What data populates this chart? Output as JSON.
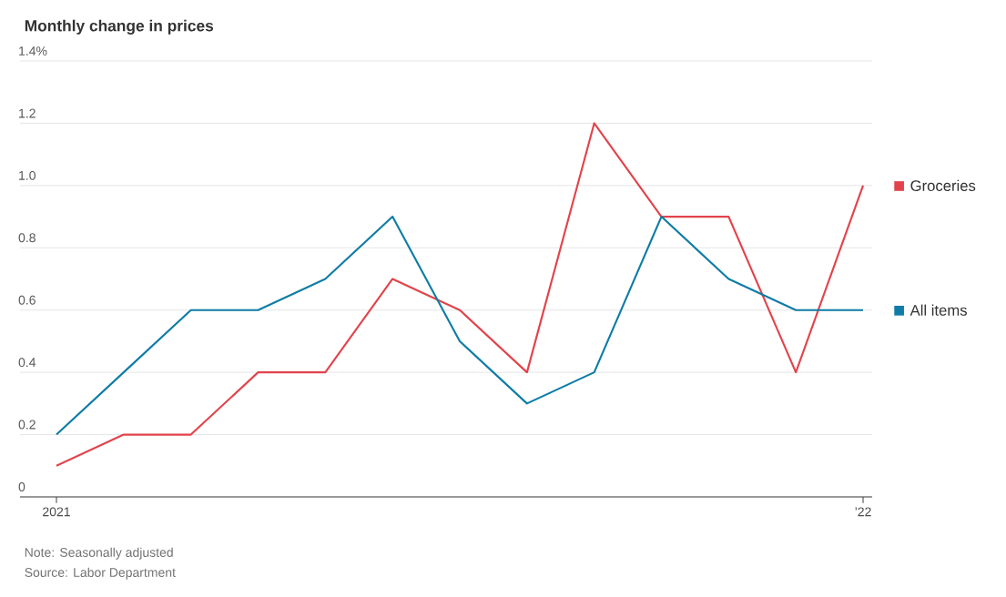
{
  "chart_data": {
    "type": "line",
    "title": "Monthly change in prices",
    "categories": [
      "2021",
      null,
      null,
      null,
      null,
      null,
      null,
      null,
      null,
      null,
      null,
      null,
      "’22"
    ],
    "series": [
      {
        "name": "Groceries",
        "color": "#e2434b",
        "values": [
          0.1,
          0.2,
          0.2,
          0.4,
          0.4,
          0.7,
          0.6,
          0.4,
          1.2,
          0.9,
          0.9,
          0.4,
          1.0
        ]
      },
      {
        "name": "All items",
        "color": "#0e7ca6",
        "values": [
          0.2,
          0.4,
          0.6,
          0.6,
          0.7,
          0.9,
          0.5,
          0.3,
          0.4,
          0.9,
          0.7,
          0.6,
          0.6
        ]
      }
    ],
    "ylim": [
      0,
      1.4
    ],
    "yticks": [
      {
        "value": 0,
        "label": "0"
      },
      {
        "value": 0.2,
        "label": "0.2"
      },
      {
        "value": 0.4,
        "label": "0.4"
      },
      {
        "value": 0.6,
        "label": "0.6"
      },
      {
        "value": 0.8,
        "label": "0.8"
      },
      {
        "value": 1.0,
        "label": "1.0"
      },
      {
        "value": 1.2,
        "label": "1.2"
      },
      {
        "value": 1.4,
        "label": "1.4%"
      }
    ],
    "grid": "y",
    "legend": "right",
    "line_style": "solid",
    "annotations": [
      "Note: Seasonally adjusted",
      "Source: Labor Department"
    ]
  }
}
